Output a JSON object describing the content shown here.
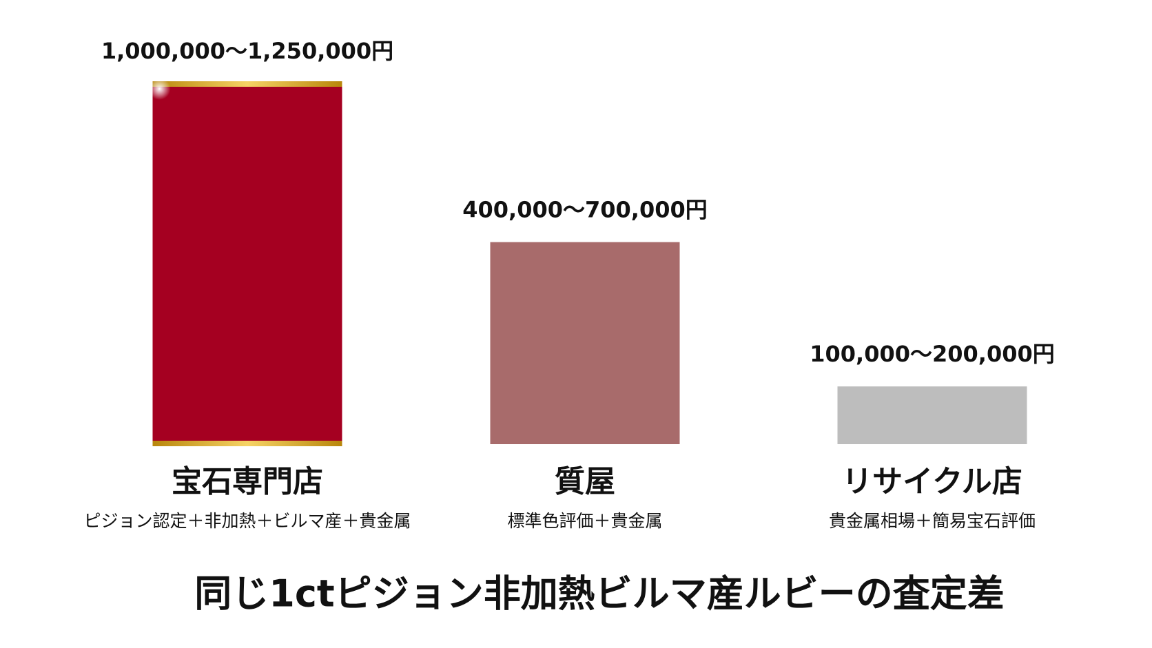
{
  "chart_data": {
    "type": "bar",
    "title": "同じ1ctピジョン非加熱ビルマ産ルビーの査定差",
    "categories": [
      "宝石専門店",
      "質屋",
      "リサイクル店"
    ],
    "details": [
      "ピジョン認定＋非加熱＋ビルマ産＋貴金属",
      "標準色評価＋貴金属",
      "貴金属相場＋簡易宝石評価"
    ],
    "values": [
      [
        1000000,
        1250000
      ],
      [
        400000,
        700000
      ],
      [
        100000,
        200000
      ]
    ],
    "value_labels": [
      "1,000,000〜1,250,000円",
      "400,000〜700,000円",
      "100,000〜200,000円"
    ],
    "colors": [
      "#a50021",
      "#a86b6b",
      "#bdbdbd"
    ],
    "ylim": [
      0,
      1250000
    ]
  }
}
